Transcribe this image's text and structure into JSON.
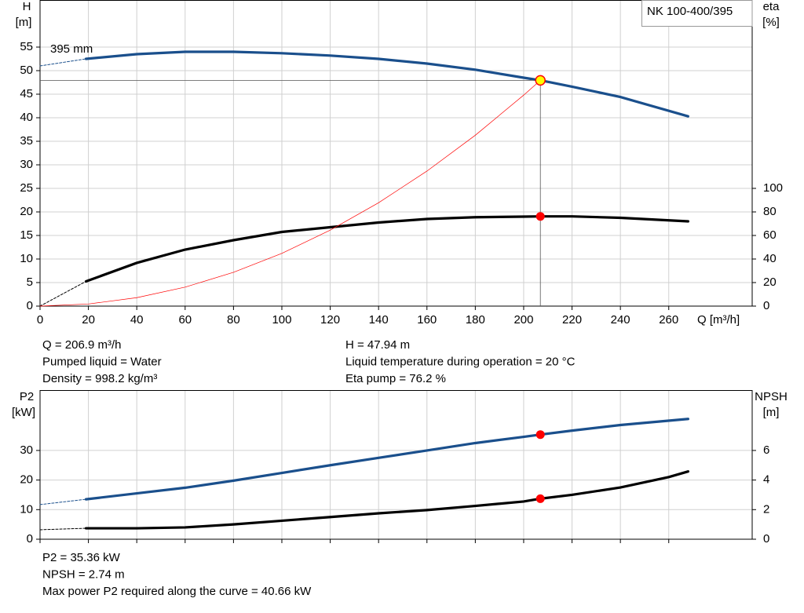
{
  "chart_data": [
    {
      "type": "line",
      "title": "NK 100-400/395",
      "xlabel": "Q [m³/h]",
      "ylabel": "H",
      "yunit": "[m]",
      "y2label": "eta",
      "y2unit": "[%]",
      "xlim": [
        0,
        294.5
      ],
      "xticks": [
        0,
        20,
        40,
        60,
        80,
        100,
        120,
        140,
        160,
        180,
        200,
        220,
        240,
        260
      ],
      "xtick_labels": true,
      "ylim": [
        0,
        65
      ],
      "yticks": [
        0,
        5,
        10,
        15,
        20,
        25,
        30,
        35,
        40,
        45,
        50,
        55
      ],
      "y2lim": [
        0,
        260
      ],
      "y2ticks": [
        0,
        20,
        40,
        60,
        80,
        100
      ],
      "grid": true,
      "series": [
        {
          "x": [
            0,
            19
          ],
          "values": [
            51,
            52.5
          ],
          "color": "#1a4f8c",
          "dashed": true,
          "curve_label": "395 mm"
        },
        {
          "x": [
            19,
            40,
            60,
            80,
            100,
            120,
            140,
            160,
            180,
            200,
            206.9,
            220,
            240,
            268
          ],
          "values": [
            52.5,
            53.5,
            54,
            54,
            53.7,
            53.2,
            52.5,
            51.5,
            50.2,
            48.5,
            47.94,
            46.6,
            44.4,
            40.3
          ],
          "color": "#1a4f8c"
        },
        {
          "x": [
            0,
            19
          ],
          "values": [
            0,
            21
          ],
          "color": "#000000",
          "dashed": true,
          "axis": "y2"
        },
        {
          "x": [
            19,
            40,
            60,
            80,
            100,
            120,
            140,
            160,
            180,
            200,
            206.9,
            220,
            240,
            268
          ],
          "values": [
            21,
            36.7,
            48,
            56,
            63,
            67,
            71,
            74,
            75.5,
            76,
            76.2,
            76.2,
            75,
            72
          ],
          "color": "#000000",
          "axis": "y2"
        },
        {
          "x": [
            0,
            20,
            40,
            60,
            80,
            100,
            120,
            140,
            160,
            180,
            200,
            206.9
          ],
          "values": [
            0,
            0.45,
            1.79,
            4.03,
            7.17,
            11.2,
            16.13,
            21.95,
            28.67,
            36.28,
            44.8,
            47.94
          ],
          "color": "#ff0000",
          "thin": true
        },
        {
          "x": [
            206.9
          ],
          "values": [
            47.94
          ],
          "marker": "circle",
          "color": "#ffff00",
          "edgecolor": "#ff0000",
          "crosshair": true
        },
        {
          "x": [
            206.9
          ],
          "values": [
            76.2
          ],
          "marker": "dot",
          "color": "#ff0000",
          "axis": "y2"
        }
      ],
      "info_left": [
        "Q = 206.9 m³/h",
        "Pumped liquid = Water",
        "Density = 998.2 kg/m³"
      ],
      "info_right": [
        "H = 47.94 m",
        "Liquid temperature during operation = 20 °C",
        "Eta pump = 76.2 %"
      ]
    },
    {
      "type": "line",
      "ylabel": "P2",
      "yunit": "[kW]",
      "y2label": "NPSH",
      "y2unit": "[m]",
      "xlim": [
        0,
        294.5
      ],
      "xticks": [
        0,
        20,
        40,
        60,
        80,
        100,
        120,
        140,
        160,
        180,
        200,
        220,
        240,
        260
      ],
      "xtick_labels": false,
      "ylim": [
        0,
        50.4
      ],
      "yticks": [
        0,
        10,
        20,
        30
      ],
      "y2lim": [
        0,
        10.08
      ],
      "y2ticks": [
        0,
        2,
        4,
        6
      ],
      "grid": true,
      "series": [
        {
          "x": [
            0,
            19
          ],
          "values": [
            11.7,
            13.5
          ],
          "color": "#1a4f8c",
          "dashed": true
        },
        {
          "x": [
            19,
            40,
            60,
            80,
            100,
            120,
            140,
            160,
            180,
            200,
            206.9,
            220,
            240,
            268
          ],
          "values": [
            13.5,
            15.5,
            17.4,
            19.8,
            22.4,
            25,
            27.5,
            30,
            32.5,
            34.6,
            35.36,
            36.7,
            38.6,
            40.66
          ],
          "color": "#1a4f8c"
        },
        {
          "x": [
            0,
            19
          ],
          "values": [
            0.64,
            0.74
          ],
          "color": "#000000",
          "dashed": true,
          "axis": "y2"
        },
        {
          "x": [
            19,
            40,
            60,
            80,
            100,
            120,
            140,
            160,
            180,
            200,
            206.9,
            220,
            240,
            260,
            268
          ],
          "values": [
            0.74,
            0.74,
            0.8,
            1.0,
            1.25,
            1.5,
            1.75,
            1.97,
            2.25,
            2.55,
            2.74,
            3.0,
            3.5,
            4.2,
            4.58
          ],
          "color": "#000000",
          "axis": "y2"
        },
        {
          "x": [
            206.9
          ],
          "values": [
            35.36
          ],
          "marker": "dot",
          "color": "#ff0000"
        },
        {
          "x": [
            206.9
          ],
          "values": [
            2.74
          ],
          "marker": "dot",
          "color": "#ff0000",
          "axis": "y2"
        }
      ],
      "info_left": [
        "P2 = 35.36 kW",
        "NPSH = 2.74 m",
        "Max power P2 required along the curve = 40.66 kW"
      ]
    }
  ]
}
